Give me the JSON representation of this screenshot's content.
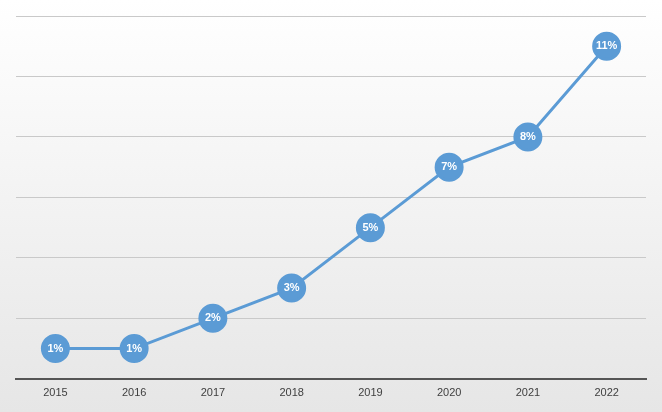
{
  "chart_data": {
    "type": "line",
    "categories": [
      "2015",
      "2016",
      "2017",
      "2018",
      "2019",
      "2020",
      "2021",
      "2022"
    ],
    "values": [
      1,
      1,
      2,
      3,
      5,
      7,
      8,
      11
    ],
    "value_labels": [
      "1%",
      "1%",
      "2%",
      "3%",
      "5%",
      "7%",
      "8%",
      "11%"
    ],
    "color": "#5b9bd5",
    "ylim": [
      0,
      12
    ],
    "yticks": [
      0,
      2,
      4,
      6,
      8,
      10,
      12
    ],
    "grid": true,
    "data_labels": true,
    "tick_labels": "x",
    "marker": "circle",
    "line_style": "solid"
  }
}
